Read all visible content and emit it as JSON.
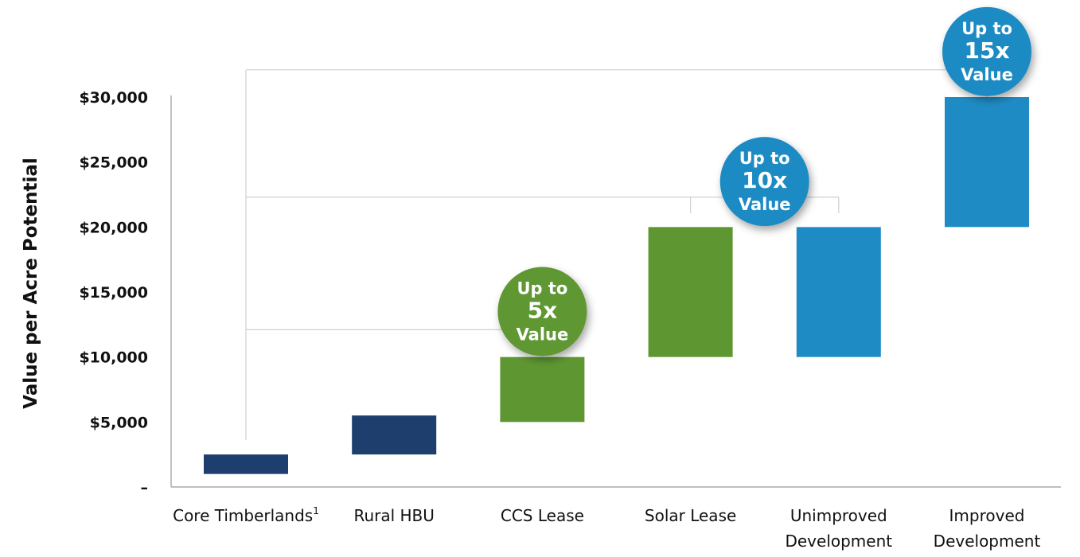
{
  "chart_data": {
    "type": "bar",
    "subtype": "floating-range",
    "title": "",
    "xlabel": "",
    "ylabel": "Value per Acre Potential",
    "ylim": [
      0,
      30000
    ],
    "yticks": [
      {
        "value": 0,
        "label": "–"
      },
      {
        "value": 5000,
        "label": "$5,000"
      },
      {
        "value": 10000,
        "label": "$10,000"
      },
      {
        "value": 15000,
        "label": "$15,000"
      },
      {
        "value": 20000,
        "label": "$20,000"
      },
      {
        "value": 25000,
        "label": "$25,000"
      },
      {
        "value": 30000,
        "label": "$30,000"
      }
    ],
    "grid": false,
    "legend": "none",
    "categories": [
      {
        "label": [
          "Core Timberlands"
        ],
        "superscript": "1"
      },
      {
        "label": [
          "Rural HBU"
        ]
      },
      {
        "label": [
          "CCS Lease"
        ]
      },
      {
        "label": [
          "Solar Lease"
        ]
      },
      {
        "label": [
          "Unimproved",
          "Development"
        ]
      },
      {
        "label": [
          "Improved",
          "Development"
        ]
      }
    ],
    "ranges": [
      {
        "low": 1000,
        "high": 2500,
        "color": "#1e3f6e"
      },
      {
        "low": 2500,
        "high": 5500,
        "color": "#1e3f6e"
      },
      {
        "low": 5000,
        "high": 10000,
        "color": "#5e9732"
      },
      {
        "low": 10000,
        "high": 20000,
        "color": "#5e9732"
      },
      {
        "low": 10000,
        "high": 20000,
        "color": "#1f8bc4"
      },
      {
        "low": 20000,
        "high": 30000,
        "color": "#1f8bc4"
      }
    ],
    "annotations": [
      {
        "lines": [
          "Up to",
          "5x",
          "Value"
        ],
        "color": "#5e9732",
        "anchor_category": 2,
        "anchor_value": 13500
      },
      {
        "lines": [
          "Up to",
          "10x",
          "Value"
        ],
        "color": "#1f8bc4",
        "anchor_category": 3.5,
        "anchor_value": 23500
      },
      {
        "lines": [
          "Up to",
          "15x",
          "Value"
        ],
        "color": "#1f8bc4",
        "anchor_category": 5,
        "anchor_value": 33500
      }
    ],
    "brackets": [
      {
        "value": 12100,
        "to_category": 2
      },
      {
        "value": 22300,
        "to_category": 3
      },
      {
        "value": 32100,
        "to_category": 5
      }
    ],
    "colors": {
      "navy": "#1e3f6e",
      "green": "#5e9732",
      "blue": "#1f8bc4",
      "connector": "#cfcfcf",
      "axis": "#999999"
    }
  }
}
